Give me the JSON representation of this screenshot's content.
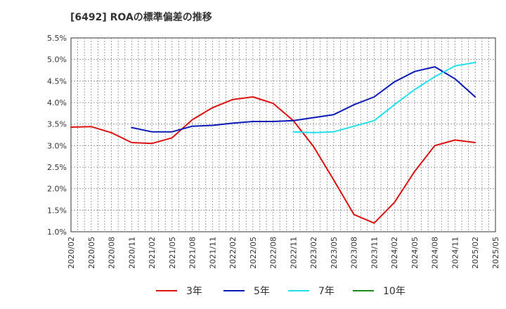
{
  "chart_data": {
    "type": "line",
    "title": "[6492]  ROAの標準偏差の推移",
    "x": [
      "2020/02",
      "2020/05",
      "2020/08",
      "2020/11",
      "2021/02",
      "2021/05",
      "2021/08",
      "2021/11",
      "2022/02",
      "2022/05",
      "2022/08",
      "2022/11",
      "2023/02",
      "2023/05",
      "2023/08",
      "2023/11",
      "2024/02",
      "2024/05",
      "2024/08",
      "2024/11",
      "2025/02",
      "2025/05"
    ],
    "y_ticks": [
      "1.0%",
      "1.5%",
      "2.0%",
      "2.5%",
      "3.0%",
      "3.5%",
      "4.0%",
      "4.5%",
      "5.0%",
      "5.5%"
    ],
    "ylim": [
      1.0,
      5.5
    ],
    "grid": true,
    "legend_position": "bottom",
    "series": [
      {
        "name": "3年",
        "color": "#dd1111",
        "values": [
          3.43,
          3.44,
          3.3,
          3.07,
          3.05,
          3.18,
          3.6,
          3.88,
          4.07,
          4.13,
          3.98,
          3.58,
          2.98,
          2.2,
          1.4,
          1.2,
          1.68,
          2.4,
          3.0,
          3.13,
          3.07,
          null
        ]
      },
      {
        "name": "5年",
        "color": "#0a1ab8",
        "values": [
          null,
          null,
          null,
          3.42,
          3.32,
          3.32,
          3.45,
          3.47,
          3.52,
          3.56,
          3.56,
          3.58,
          3.65,
          3.72,
          3.95,
          4.13,
          4.48,
          4.72,
          4.83,
          4.55,
          4.13,
          null
        ]
      },
      {
        "name": "7年",
        "color": "#22e0ee",
        "values": [
          null,
          null,
          null,
          null,
          null,
          null,
          null,
          null,
          null,
          null,
          null,
          3.32,
          3.3,
          3.32,
          3.45,
          3.58,
          3.95,
          4.3,
          4.6,
          4.85,
          4.93,
          null
        ]
      },
      {
        "name": "10年",
        "color": "#1a8a1a",
        "values": [
          null,
          null,
          null,
          null,
          null,
          null,
          null,
          null,
          null,
          null,
          null,
          null,
          null,
          null,
          null,
          null,
          null,
          null,
          null,
          null,
          null,
          null
        ]
      }
    ]
  }
}
